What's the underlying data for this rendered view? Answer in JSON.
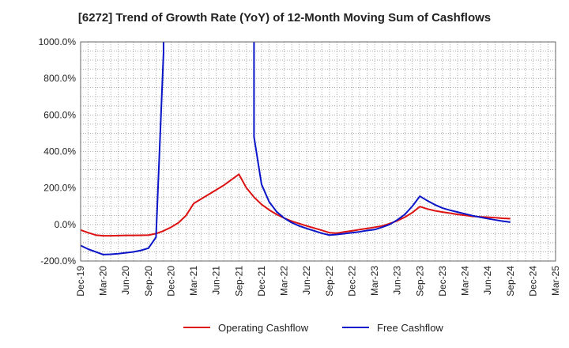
{
  "chart_data": {
    "type": "line",
    "title": "[6272]  Trend of Growth Rate (YoY) of 12-Month Moving Sum of Cashflows",
    "xlabel": "",
    "ylabel": "",
    "ylim": [
      -200,
      1000
    ],
    "xlim": [
      "2019-12",
      "2025-03"
    ],
    "y_ticks": [
      -200,
      0,
      200,
      400,
      600,
      800,
      1000
    ],
    "y_tick_labels": [
      "-200.0%",
      "0.0%",
      "200.0%",
      "400.0%",
      "600.0%",
      "800.0%",
      "1000.0%"
    ],
    "x_ticks": [
      "2019-12",
      "2020-03",
      "2020-06",
      "2020-09",
      "2020-12",
      "2021-03",
      "2021-06",
      "2021-09",
      "2021-12",
      "2022-03",
      "2022-06",
      "2022-09",
      "2022-12",
      "2023-03",
      "2023-06",
      "2023-09",
      "2023-12",
      "2024-03",
      "2024-06",
      "2024-09",
      "2024-12",
      "2025-03"
    ],
    "x_tick_labels": [
      "Dec-19",
      "Mar-20",
      "Jun-20",
      "Sep-20",
      "Dec-20",
      "Mar-21",
      "Jun-21",
      "Sep-21",
      "Dec-21",
      "Mar-22",
      "Jun-22",
      "Sep-22",
      "Dec-22",
      "Mar-23",
      "Jun-23",
      "Sep-23",
      "Dec-23",
      "Mar-24",
      "Jun-24",
      "Sep-24",
      "Dec-24",
      "Mar-25"
    ],
    "grid": true,
    "legend_position": "bottom",
    "series": [
      {
        "name": "Operating Cashflow",
        "color": "#dd1111",
        "points": [
          [
            "2019-12",
            -30
          ],
          [
            "2020-01",
            -45
          ],
          [
            "2020-02",
            -58
          ],
          [
            "2020-03",
            -62
          ],
          [
            "2020-04",
            -62
          ],
          [
            "2020-05",
            -61
          ],
          [
            "2020-06",
            -60
          ],
          [
            "2020-07",
            -60
          ],
          [
            "2020-08",
            -59
          ],
          [
            "2020-09",
            -58
          ],
          [
            "2020-10",
            -50
          ],
          [
            "2020-11",
            -35
          ],
          [
            "2020-12",
            -15
          ],
          [
            "2021-01",
            10
          ],
          [
            "2021-02",
            50
          ],
          [
            "2021-03",
            115
          ],
          [
            "2021-04",
            140
          ],
          [
            "2021-05",
            165
          ],
          [
            "2021-06",
            190
          ],
          [
            "2021-07",
            215
          ],
          [
            "2021-08",
            245
          ],
          [
            "2021-09",
            275
          ],
          [
            "2021-10",
            200
          ],
          [
            "2021-11",
            150
          ],
          [
            "2021-12",
            110
          ],
          [
            "2022-01",
            80
          ],
          [
            "2022-02",
            55
          ],
          [
            "2022-03",
            35
          ],
          [
            "2022-04",
            18
          ],
          [
            "2022-05",
            5
          ],
          [
            "2022-06",
            -8
          ],
          [
            "2022-07",
            -20
          ],
          [
            "2022-08",
            -32
          ],
          [
            "2022-09",
            -45
          ],
          [
            "2022-10",
            -48
          ],
          [
            "2022-11",
            -40
          ],
          [
            "2022-12",
            -35
          ],
          [
            "2023-01",
            -28
          ],
          [
            "2023-02",
            -22
          ],
          [
            "2023-03",
            -15
          ],
          [
            "2023-04",
            -8
          ],
          [
            "2023-05",
            5
          ],
          [
            "2023-06",
            20
          ],
          [
            "2023-07",
            40
          ],
          [
            "2023-08",
            65
          ],
          [
            "2023-09",
            98
          ],
          [
            "2023-10",
            85
          ],
          [
            "2023-11",
            75
          ],
          [
            "2023-12",
            68
          ],
          [
            "2024-01",
            62
          ],
          [
            "2024-02",
            55
          ],
          [
            "2024-03",
            50
          ],
          [
            "2024-04",
            45
          ],
          [
            "2024-05",
            42
          ],
          [
            "2024-06",
            40
          ],
          [
            "2024-07",
            37
          ],
          [
            "2024-08",
            34
          ],
          [
            "2024-09",
            32
          ]
        ]
      },
      {
        "name": "Free Cashflow",
        "color": "#0a14c8",
        "points": [
          [
            "2019-12",
            -115
          ],
          [
            "2020-01",
            -135
          ],
          [
            "2020-02",
            -150
          ],
          [
            "2020-03",
            -165
          ],
          [
            "2020-04",
            -163
          ],
          [
            "2020-05",
            -160
          ],
          [
            "2020-06",
            -155
          ],
          [
            "2020-07",
            -150
          ],
          [
            "2020-08",
            -142
          ],
          [
            "2020-09",
            -130
          ],
          [
            "2020-10",
            -70
          ],
          [
            "2020-11",
            940
          ],
          [
            "2020-11",
            2000
          ],
          [
            "2021-11",
            2000
          ],
          [
            "2021-11",
            480
          ],
          [
            "2021-12",
            220
          ],
          [
            "2022-01",
            125
          ],
          [
            "2022-02",
            70
          ],
          [
            "2022-03",
            35
          ],
          [
            "2022-04",
            10
          ],
          [
            "2022-05",
            -8
          ],
          [
            "2022-06",
            -22
          ],
          [
            "2022-07",
            -35
          ],
          [
            "2022-08",
            -48
          ],
          [
            "2022-09",
            -58
          ],
          [
            "2022-10",
            -55
          ],
          [
            "2022-11",
            -50
          ],
          [
            "2022-12",
            -45
          ],
          [
            "2023-01",
            -40
          ],
          [
            "2023-02",
            -33
          ],
          [
            "2023-03",
            -28
          ],
          [
            "2023-04",
            -15
          ],
          [
            "2023-05",
            0
          ],
          [
            "2023-06",
            25
          ],
          [
            "2023-07",
            55
          ],
          [
            "2023-08",
            100
          ],
          [
            "2023-09",
            155
          ],
          [
            "2023-10",
            130
          ],
          [
            "2023-11",
            108
          ],
          [
            "2023-12",
            90
          ],
          [
            "2024-01",
            78
          ],
          [
            "2024-02",
            68
          ],
          [
            "2024-03",
            58
          ],
          [
            "2024-04",
            48
          ],
          [
            "2024-05",
            40
          ],
          [
            "2024-06",
            32
          ],
          [
            "2024-07",
            25
          ],
          [
            "2024-08",
            18
          ],
          [
            "2024-09",
            13
          ]
        ]
      }
    ]
  }
}
